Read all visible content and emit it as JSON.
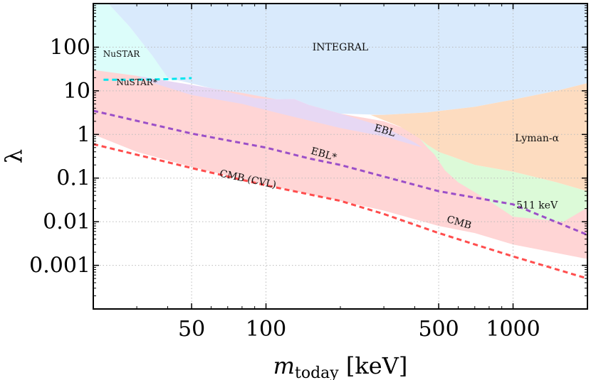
{
  "chart_data": {
    "type": "area",
    "title": "",
    "xlabel": "m_today [keV]",
    "xlabel_main": "m",
    "xlabel_sub": "today",
    "xlabel_unit": " [keV]",
    "ylabel": "λ",
    "x_scale": "log",
    "y_scale": "log",
    "xlim": [
      20,
      2000
    ],
    "ylim": [
      0.0001,
      1000
    ],
    "grid": true,
    "x_ticks": [
      {
        "value": 50,
        "label": "50"
      },
      {
        "value": 100,
        "label": "100"
      },
      {
        "value": 500,
        "label": "500"
      },
      {
        "value": 1000,
        "label": "1000"
      }
    ],
    "y_ticks": [
      {
        "value": 100,
        "label": "100"
      },
      {
        "value": 10,
        "label": "10"
      },
      {
        "value": 1,
        "label": "1"
      },
      {
        "value": 0.1,
        "label": "0.1"
      },
      {
        "value": 0.01,
        "label": "0.01"
      },
      {
        "value": 0.001,
        "label": "0.001"
      }
    ],
    "regions": [
      {
        "name": "NuSTAR",
        "label": "NuSTAR",
        "color": "#dcfdfa",
        "points": [
          [
            20,
            18
          ],
          [
            20,
            1000
          ],
          [
            23,
            1000
          ],
          [
            28,
            300
          ],
          [
            35,
            60
          ],
          [
            42,
            28
          ],
          [
            50,
            20
          ],
          [
            48,
            17
          ],
          [
            40,
            18
          ],
          [
            30,
            18
          ],
          [
            20,
            18
          ]
        ]
      },
      {
        "name": "INTEGRAL",
        "label": "INTEGRAL",
        "color": "#d9eafc",
        "points": [
          [
            23,
            1000
          ],
          [
            2000,
            1000
          ],
          [
            2000,
            15
          ],
          [
            1500,
            10
          ],
          [
            1000,
            6.3
          ],
          [
            700,
            4.3
          ],
          [
            450,
            3.2
          ],
          [
            300,
            2.8
          ],
          [
            200,
            3.0
          ],
          [
            150,
            4.7
          ],
          [
            130,
            6.5
          ],
          [
            110,
            6.4
          ],
          [
            90,
            6.8
          ],
          [
            60,
            11.5
          ],
          [
            45,
            17
          ],
          [
            40,
            20
          ],
          [
            35,
            60
          ],
          [
            28,
            300
          ],
          [
            23,
            1000
          ]
        ]
      },
      {
        "name": "CMB",
        "label": "CMB",
        "color": "#ffd5d5",
        "points": [
          [
            20,
            30
          ],
          [
            30,
            22
          ],
          [
            50,
            13
          ],
          [
            80,
            9
          ],
          [
            110,
            6.4
          ],
          [
            150,
            4.7
          ],
          [
            200,
            3.0
          ],
          [
            300,
            2.0
          ],
          [
            450,
            0.9
          ],
          [
            500,
            0.5
          ],
          [
            600,
            0.2
          ],
          [
            800,
            0.05
          ],
          [
            1200,
            0.028
          ],
          [
            2000,
            0.022
          ],
          [
            2000,
            0.0014
          ],
          [
            1000,
            0.003
          ],
          [
            700,
            0.0055
          ],
          [
            500,
            0.008
          ],
          [
            300,
            0.018
          ],
          [
            200,
            0.03
          ],
          [
            100,
            0.07
          ],
          [
            50,
            0.18
          ],
          [
            30,
            0.4
          ],
          [
            20,
            1.0
          ],
          [
            20,
            30
          ]
        ]
      },
      {
        "name": "EBL",
        "label": "EBL",
        "color": "#e7d8f4",
        "points": [
          [
            30,
            22
          ],
          [
            60,
            11.5
          ],
          [
            90,
            6.8
          ],
          [
            110,
            6.4
          ],
          [
            130,
            6.5
          ],
          [
            150,
            4.7
          ],
          [
            200,
            3.0
          ],
          [
            300,
            1.5
          ],
          [
            400,
            0.65
          ],
          [
            430,
            0.5
          ],
          [
            300,
            0.9
          ],
          [
            200,
            1.4
          ],
          [
            120,
            2.8
          ],
          [
            80,
            5
          ],
          [
            50,
            8
          ],
          [
            35,
            15
          ],
          [
            30,
            22
          ]
        ]
      },
      {
        "name": "Lyman-alpha",
        "label": "Lyman-α",
        "color": "#fddcc0",
        "points": [
          [
            265,
            2.8
          ],
          [
            300,
            2.8
          ],
          [
            450,
            3.2
          ],
          [
            700,
            4.3
          ],
          [
            1000,
            6.3
          ],
          [
            1500,
            10
          ],
          [
            2000,
            15
          ],
          [
            2000,
            0.05
          ],
          [
            1500,
            0.08
          ],
          [
            1000,
            0.14
          ],
          [
            700,
            0.2
          ],
          [
            500,
            0.4
          ],
          [
            450,
            0.58
          ],
          [
            420,
            0.8
          ],
          [
            350,
            1.5
          ],
          [
            265,
            2.8
          ]
        ]
      },
      {
        "name": "511 keV",
        "label": "511 keV",
        "color": "#dcfad8",
        "points": [
          [
            420,
            0.8
          ],
          [
            450,
            0.58
          ],
          [
            500,
            0.4
          ],
          [
            700,
            0.2
          ],
          [
            1000,
            0.14
          ],
          [
            1500,
            0.08
          ],
          [
            2000,
            0.05
          ],
          [
            2000,
            0.021
          ],
          [
            1600,
            0.01
          ],
          [
            1000,
            0.013
          ],
          [
            800,
            0.03
          ],
          [
            600,
            0.08
          ],
          [
            530,
            0.15
          ],
          [
            480,
            0.35
          ],
          [
            450,
            0.5
          ],
          [
            420,
            0.8
          ]
        ]
      }
    ],
    "series": [
      {
        "name": "NuSTAR*",
        "label": "NuSTAR*",
        "color": "#00e5ee",
        "dash": true,
        "points": [
          [
            22,
            18
          ],
          [
            30,
            18
          ],
          [
            40,
            18.5
          ],
          [
            50,
            19.5
          ]
        ]
      },
      {
        "name": "EBL*",
        "label": "EBL*",
        "color": "#9b4fc8",
        "dash": true,
        "points": [
          [
            20,
            3.5
          ],
          [
            50,
            1.05
          ],
          [
            100,
            0.5
          ],
          [
            150,
            0.28
          ],
          [
            200,
            0.2
          ],
          [
            500,
            0.05
          ],
          [
            1000,
            0.025
          ],
          [
            2000,
            0.005
          ]
        ]
      },
      {
        "name": "CMB (CVL)",
        "label": "CMB (CVL)",
        "color": "#ff4d4d",
        "dash": true,
        "points": [
          [
            20,
            0.6
          ],
          [
            50,
            0.17
          ],
          [
            100,
            0.068
          ],
          [
            200,
            0.03
          ],
          [
            300,
            0.015
          ],
          [
            500,
            0.0055
          ],
          [
            1000,
            0.0016
          ],
          [
            2000,
            0.0005
          ]
        ]
      }
    ],
    "annotations": [
      {
        "text": "NuSTAR",
        "x": 26,
        "y": 60,
        "rotate": 0,
        "name": "label-nustar"
      },
      {
        "text": "NuSTAR*",
        "x": 30,
        "y": 13.5,
        "rotate": 0,
        "name": "label-nustar-star"
      },
      {
        "text": "INTEGRAL",
        "x": 200,
        "y": 85,
        "rotate": 0,
        "name": "label-integral"
      },
      {
        "text": "EBL",
        "x": 300,
        "y": 1.05,
        "rotate": 16,
        "name": "label-ebl"
      },
      {
        "text": "EBL*",
        "x": 170,
        "y": 0.3,
        "rotate": 16,
        "name": "label-ebl-star"
      },
      {
        "text": "CMB (CVL)",
        "x": 84,
        "y": 0.08,
        "rotate": 12,
        "name": "label-cmb-cvl"
      },
      {
        "text": "CMB",
        "x": 600,
        "y": 0.0082,
        "rotate": 16,
        "name": "label-cmb"
      },
      {
        "text": "Lyman-α",
        "x": 1250,
        "y": 0.7,
        "rotate": 0,
        "name": "label-lyman-alpha"
      },
      {
        "text": "511 keV",
        "x": 1250,
        "y": 0.02,
        "rotate": 0,
        "name": "label-511kev"
      }
    ]
  }
}
